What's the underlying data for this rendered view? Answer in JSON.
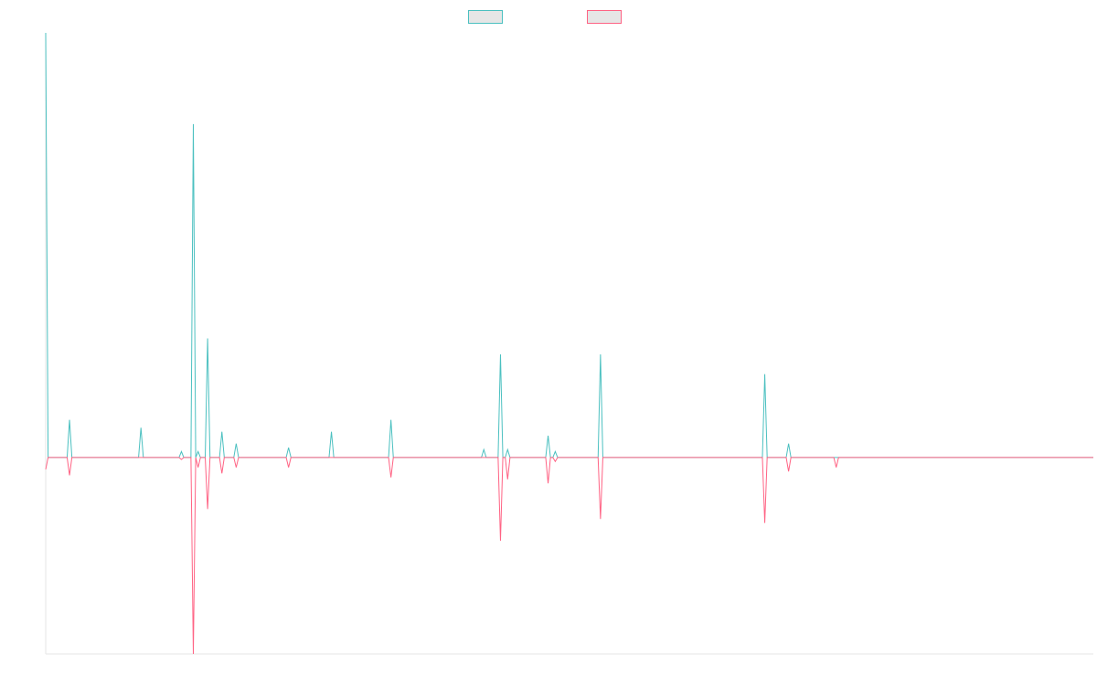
{
  "chart_data": {
    "type": "line",
    "title": "",
    "xlabel": "",
    "ylabel": "",
    "x": [
      0,
      1,
      2,
      3,
      4,
      5,
      6,
      7,
      8,
      9,
      10,
      11,
      12,
      13,
      14,
      15,
      16,
      17,
      18,
      19,
      20,
      21,
      22,
      23,
      24,
      25,
      26,
      27,
      28,
      29,
      30,
      31,
      32,
      33,
      34,
      35,
      36,
      37,
      38,
      39,
      40,
      41,
      42,
      43,
      44,
      45,
      46,
      47,
      48,
      49,
      50,
      51,
      52,
      53,
      54,
      55,
      56,
      57,
      58,
      59,
      60,
      61,
      62,
      63,
      64,
      65,
      66,
      67,
      68,
      69,
      70,
      71,
      72,
      73,
      74,
      75,
      76,
      77,
      78,
      79,
      80,
      81,
      82,
      83,
      84,
      85,
      86,
      87,
      88,
      89,
      90,
      91,
      92,
      93,
      94,
      95,
      96,
      97,
      98,
      99,
      100,
      101,
      102,
      103,
      104,
      105,
      106,
      107,
      108,
      109,
      110,
      111,
      112,
      113,
      114,
      115,
      116,
      117,
      118,
      119,
      120,
      121,
      122,
      123,
      124,
      125,
      126,
      127,
      128,
      129,
      130,
      131,
      132,
      133,
      134,
      135,
      136,
      137,
      138,
      139,
      140,
      141,
      142,
      143,
      144,
      145,
      146,
      147,
      148,
      149,
      150,
      151,
      152,
      153,
      154,
      155,
      156,
      157,
      158,
      159,
      160,
      161,
      162,
      163,
      164,
      165,
      166,
      167,
      168,
      169,
      170,
      171,
      172,
      173,
      174,
      175,
      176,
      177,
      178,
      179,
      180,
      181,
      182,
      183,
      184,
      185,
      186,
      187,
      188,
      189,
      190,
      191,
      192,
      193,
      194,
      195,
      196,
      197,
      198,
      199,
      200,
      201,
      202,
      203,
      204,
      205,
      206,
      207,
      208,
      209,
      210,
      211,
      212,
      213,
      214,
      215,
      216,
      217,
      218,
      219,
      220,
      221,
      222,
      223,
      224,
      225,
      226,
      227,
      228,
      229,
      230,
      231,
      232,
      233,
      234,
      235,
      236,
      237,
      238,
      239,
      240,
      241,
      242,
      243,
      244,
      245,
      246,
      247,
      248,
      249,
      250,
      251,
      252,
      253,
      254,
      255,
      256,
      257,
      258,
      259,
      260,
      261,
      262,
      263,
      264,
      265,
      266,
      267,
      268,
      269,
      270,
      271,
      272,
      273,
      274,
      275,
      276,
      277,
      278,
      279,
      280,
      281,
      282,
      283,
      284,
      285,
      286,
      287,
      288,
      289,
      290,
      291,
      292,
      293,
      294,
      295,
      296,
      297,
      298,
      299,
      300,
      301,
      302,
      303,
      304,
      305,
      306,
      307,
      308,
      309,
      310,
      311,
      312,
      313,
      314,
      315,
      316,
      317,
      318,
      319,
      320,
      321,
      322,
      323,
      324,
      325,
      326,
      327,
      328,
      329,
      330,
      331,
      332,
      333,
      334,
      335,
      336,
      337,
      338,
      339,
      340,
      341,
      342,
      343,
      344,
      345,
      346,
      347,
      348,
      349,
      350,
      351,
      352,
      353,
      354,
      355,
      356,
      357,
      358,
      359,
      360,
      361,
      362,
      363,
      364,
      365,
      366,
      367,
      368,
      369,
      370,
      371,
      372,
      373,
      374,
      375,
      376,
      377,
      378,
      379,
      380,
      381,
      382,
      383,
      384,
      385,
      386,
      387,
      388,
      389,
      390,
      391,
      392,
      393,
      394,
      395,
      396,
      397,
      398,
      399,
      400,
      401,
      402,
      403,
      404,
      405,
      406,
      407,
      408,
      409,
      410,
      411,
      412,
      413,
      414,
      415,
      416,
      417,
      418,
      419,
      420,
      421,
      422,
      423,
      424,
      425,
      426,
      427,
      428,
      429,
      430,
      431,
      432,
      433,
      434,
      435,
      436,
      437,
      438,
      439,
      440
    ],
    "ylim": [
      -49.5,
      107
    ],
    "grid": false,
    "legend_position": "top",
    "series": [
      {
        "color": "#4bc0c0",
        "values": {
          "0": 107,
          "1": 0,
          "10": 9.5,
          "11": 0,
          "40": 7.5,
          "41": 0,
          "57": 1.5,
          "58": 0,
          "62": 84,
          "63": 0,
          "64": 1.5,
          "65": 0,
          "68": 30,
          "69": 0,
          "74": 6.5,
          "75": 0,
          "80": 3.5,
          "81": 0,
          "102": 2.5,
          "103": 0,
          "120": 6.5,
          "121": 0,
          "145": 9.5,
          "146": 0,
          "184": 2,
          "185": 0,
          "191": 26,
          "192": 0,
          "194": 2,
          "195": 0,
          "211": 5.5,
          "212": 0,
          "214": 1.5,
          "215": 0,
          "233": 26,
          "234": 0,
          "302": 21,
          "303": 0,
          "312": 3.5,
          "313": 0
        }
      },
      {
        "color": "#ff6384",
        "values": {
          "0": -3,
          "1": 0,
          "10": -4.5,
          "11": 0,
          "57": -0.5,
          "58": 0,
          "62": -49.5,
          "63": 0,
          "64": -2.5,
          "65": 0,
          "68": -13,
          "69": 0,
          "74": -4,
          "75": 0,
          "80": -2.5,
          "81": 0,
          "102": -2.5,
          "103": 0,
          "145": -5,
          "146": 0,
          "191": -21,
          "192": 0,
          "194": -5.5,
          "195": 0,
          "211": -6.5,
          "212": 0,
          "214": -1,
          "215": 0,
          "233": -15.5,
          "234": 0,
          "302": -16.5,
          "303": 0,
          "312": -3.5,
          "313": 0,
          "332": -2.5,
          "333": 0
        }
      }
    ]
  }
}
